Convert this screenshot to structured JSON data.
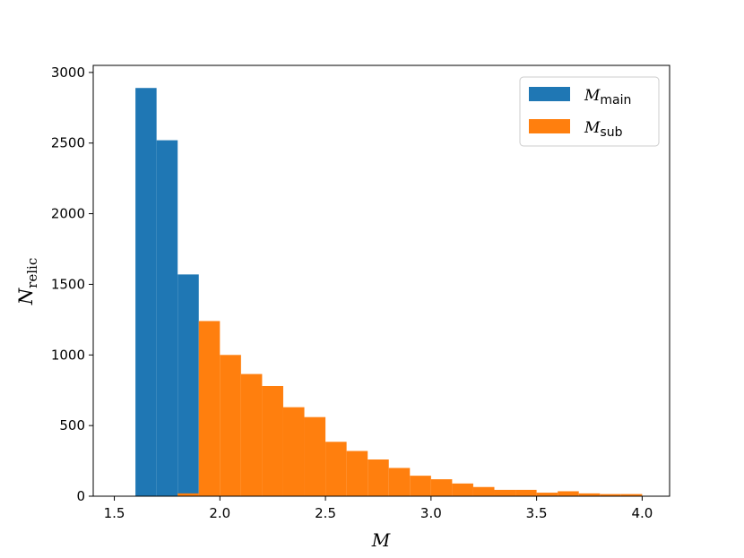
{
  "chart_data": {
    "type": "bar",
    "xlabel": "M",
    "ylabel": {
      "main": "N",
      "sub": "relic"
    },
    "xlim": [
      1.4,
      4.13
    ],
    "ylim": [
      0,
      3050
    ],
    "xticks": [
      1.5,
      2.0,
      2.5,
      3.0,
      3.5,
      4.0
    ],
    "xtick_labels": [
      "1.5",
      "2.0",
      "2.5",
      "3.0",
      "3.5",
      "4.0"
    ],
    "yticks": [
      0,
      500,
      1000,
      1500,
      2000,
      2500,
      3000
    ],
    "ytick_labels": [
      "0",
      "500",
      "1000",
      "1500",
      "2000",
      "2500",
      "3000"
    ],
    "grid": false,
    "legend_position": "top-right",
    "series": [
      {
        "name": "M_main",
        "label_main": "M",
        "label_sub": "main",
        "color": "#1f77b4",
        "bins": [
          [
            1.6,
            1.7,
            2890
          ],
          [
            1.7,
            1.8,
            2520
          ],
          [
            1.8,
            1.9,
            1570
          ]
        ]
      },
      {
        "name": "M_sub",
        "label_main": "M",
        "label_sub": "sub",
        "color": "#ff7f0e",
        "bins": [
          [
            1.8,
            1.9,
            20
          ],
          [
            1.9,
            2.0,
            1240
          ],
          [
            2.0,
            2.1,
            1000
          ],
          [
            2.1,
            2.2,
            865
          ],
          [
            2.2,
            2.3,
            780
          ],
          [
            2.3,
            2.4,
            630
          ],
          [
            2.4,
            2.5,
            560
          ],
          [
            2.5,
            2.6,
            385
          ],
          [
            2.6,
            2.7,
            320
          ],
          [
            2.7,
            2.8,
            260
          ],
          [
            2.8,
            2.9,
            200
          ],
          [
            2.9,
            3.0,
            145
          ],
          [
            3.0,
            3.1,
            120
          ],
          [
            3.1,
            3.2,
            90
          ],
          [
            3.2,
            3.3,
            65
          ],
          [
            3.3,
            3.4,
            45
          ],
          [
            3.4,
            3.5,
            45
          ],
          [
            3.5,
            3.6,
            25
          ],
          [
            3.6,
            3.7,
            35
          ],
          [
            3.7,
            3.8,
            20
          ],
          [
            3.8,
            3.9,
            15
          ],
          [
            3.9,
            4.0,
            15
          ]
        ]
      }
    ]
  }
}
